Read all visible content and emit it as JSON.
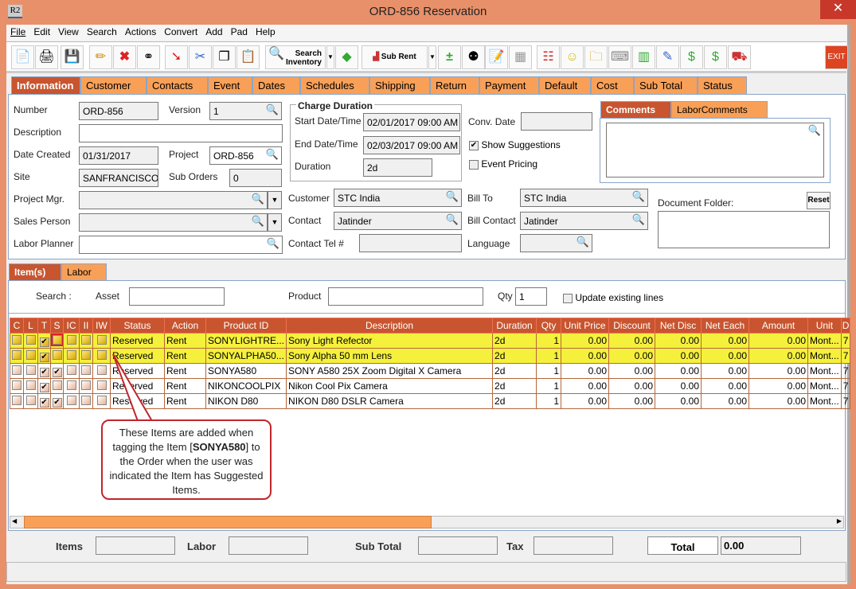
{
  "window": {
    "title": "ORD-856 Reservation",
    "app_icon": "R2",
    "close": "✕"
  },
  "menu": [
    "File",
    "Edit",
    "View",
    "Search",
    "Actions",
    "Convert",
    "Add",
    "Pad",
    "Help"
  ],
  "toolbar": {
    "search_inventory": "Search Inventory",
    "sub_rent": "Sub Rent",
    "exit": "EXIT"
  },
  "tabs": [
    "Information",
    "Customer",
    "Contacts",
    "Event",
    "Dates",
    "Schedules",
    "Shipping",
    "Return",
    "Payment",
    "Default",
    "Cost",
    "Sub Total",
    "Status"
  ],
  "form": {
    "number_label": "Number",
    "number": "ORD-856",
    "version_label": "Version",
    "version": "1",
    "description_label": "Description",
    "description": "",
    "date_created_label": "Date Created",
    "date_created": "01/31/2017",
    "project_label": "Project",
    "project": "ORD-856",
    "site_label": "Site",
    "site": "SANFRANCISCO",
    "sub_orders_label": "Sub Orders",
    "sub_orders": "0",
    "project_mgr_label": "Project Mgr.",
    "sales_person_label": "Sales Person",
    "labor_planner_label": "Labor Planner",
    "charge_duration_title": "Charge Duration",
    "start_label": "Start Date/Time",
    "start": "02/01/2017 09:00 AM",
    "end_label": "End Date/Time",
    "end": "02/03/2017 09:00 AM",
    "duration_label": "Duration",
    "duration": "2d",
    "conv_date_label": "Conv. Date",
    "conv_date": "",
    "show_suggestions": "Show Suggestions",
    "show_suggestions_checked": true,
    "event_pricing": "Event Pricing",
    "event_pricing_checked": false,
    "customer_label": "Customer",
    "customer": "STC India",
    "contact_label": "Contact",
    "contact": "Jatinder",
    "contact_tel_label": "Contact Tel #",
    "contact_tel": "",
    "bill_to_label": "Bill To",
    "bill_to": "STC India",
    "bill_contact_label": "Bill Contact",
    "bill_contact": "Jatinder",
    "language_label": "Language",
    "language": "",
    "comments_tabs": [
      "Comments",
      "LaborComments"
    ],
    "document_folder_label": "Document Folder:",
    "reset": "Reset"
  },
  "item_tabs": [
    "Item(s)",
    "Labor"
  ],
  "search": {
    "label": "Search :",
    "asset_label": "Asset",
    "asset": "",
    "product_label": "Product",
    "product": "",
    "qty_label": "Qty",
    "qty": "1",
    "update_existing": "Update existing lines"
  },
  "table": {
    "columns": [
      "C",
      "L",
      "T",
      "S",
      "IC",
      "II",
      "IW",
      "Status",
      "Action",
      "Product ID",
      "Description",
      "Duration",
      "Qty",
      "Unit Price",
      "Discount",
      "Net Disc",
      "Net Each",
      "Amount",
      "Unit",
      "D"
    ],
    "rows": [
      {
        "highlight": true,
        "checks": [
          false,
          false,
          true,
          false,
          false,
          false,
          false
        ],
        "status": "Reserved",
        "action": "Rent",
        "product_id": "SONYLIGHTRE...",
        "description": "Sony Light Refector",
        "duration": "2d",
        "qty": "1",
        "unit_price": "0.00",
        "discount": "0.00",
        "net_disc": "0.00",
        "net_each": "0.00",
        "amount": "0.00",
        "unit": "Mont...",
        "d": "7"
      },
      {
        "highlight": true,
        "checks": [
          false,
          false,
          true,
          false,
          false,
          false,
          false
        ],
        "status": "Reserved",
        "action": "Rent",
        "product_id": "SONYALPHA50...",
        "description": "Sony Alpha 50 mm Lens",
        "duration": "2d",
        "qty": "1",
        "unit_price": "0.00",
        "discount": "0.00",
        "net_disc": "0.00",
        "net_each": "0.00",
        "amount": "0.00",
        "unit": "Mont...",
        "d": "7"
      },
      {
        "highlight": false,
        "checks": [
          false,
          false,
          true,
          true,
          false,
          false,
          false
        ],
        "status": "Reserved",
        "action": "Rent",
        "product_id": "SONYA580",
        "description": "SONY A580 25X Zoom Digital X Camera",
        "duration": "2d",
        "qty": "1",
        "unit_price": "0.00",
        "discount": "0.00",
        "net_disc": "0.00",
        "net_each": "0.00",
        "amount": "0.00",
        "unit": "Mont...",
        "d": "7"
      },
      {
        "highlight": false,
        "checks": [
          false,
          false,
          true,
          false,
          false,
          false,
          false
        ],
        "status": "Reserved",
        "action": "Rent",
        "product_id": "NIKONCOOLPIX",
        "description": "Nikon Cool Pix Camera",
        "duration": "2d",
        "qty": "1",
        "unit_price": "0.00",
        "discount": "0.00",
        "net_disc": "0.00",
        "net_each": "0.00",
        "amount": "0.00",
        "unit": "Mont...",
        "d": "7"
      },
      {
        "highlight": false,
        "checks": [
          false,
          false,
          true,
          true,
          false,
          false,
          false
        ],
        "status": "Reserved",
        "action": "Rent",
        "product_id": "NIKON D80",
        "description": "NIKON D80 DSLR Camera",
        "duration": "2d",
        "qty": "1",
        "unit_price": "0.00",
        "discount": "0.00",
        "net_disc": "0.00",
        "net_each": "0.00",
        "amount": "0.00",
        "unit": "Mont...",
        "d": "7"
      }
    ]
  },
  "callout": {
    "before": "These Items are added when tagging the Item [",
    "bold": "SONYA580",
    "after": "] to the Order when the user was indicated the Item has Suggested Items."
  },
  "footer": {
    "items_label": "Items",
    "labor_label": "Labor",
    "sub_total_label": "Sub Total",
    "tax_label": "Tax",
    "total_label": "Total",
    "total": "0.00"
  },
  "colors": {
    "title_bar": "#E8906A",
    "tab": "#F9A058",
    "active_tab": "#C8552F",
    "highlight_row": "#F5F03C",
    "callout_border": "#C0262C"
  }
}
